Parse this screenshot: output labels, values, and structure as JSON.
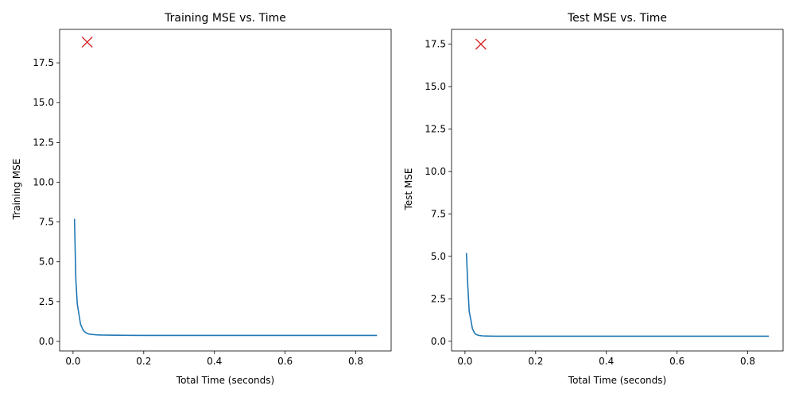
{
  "chart_data": [
    {
      "type": "line",
      "title": "Training MSE vs. Time",
      "xlabel": "Total Time (seconds)",
      "ylabel": "Training MSE",
      "xlim": [
        -0.038,
        0.9
      ],
      "ylim": [
        -0.6,
        19.6
      ],
      "xticks": [
        0.0,
        0.2,
        0.4,
        0.6,
        0.8
      ],
      "xtick_labels": [
        "0.0",
        "0.2",
        "0.4",
        "0.6",
        "0.8"
      ],
      "yticks": [
        0.0,
        2.5,
        5.0,
        7.5,
        10.0,
        12.5,
        15.0,
        17.5
      ],
      "ytick_labels": [
        "0.0",
        "2.5",
        "5.0",
        "7.5",
        "10.0",
        "12.5",
        "15.0",
        "17.5"
      ],
      "grid": false,
      "series": [
        {
          "color": "#1f77b4",
          "x": [
            0.004,
            0.008,
            0.012,
            0.017,
            0.021,
            0.026,
            0.03,
            0.035,
            0.04,
            0.045,
            0.05,
            0.06,
            0.07,
            0.085,
            0.1,
            0.12,
            0.15,
            0.2,
            0.3,
            0.4,
            0.5,
            0.6,
            0.7,
            0.8,
            0.86
          ],
          "y": [
            7.7,
            3.9,
            2.35,
            1.65,
            1.1,
            0.82,
            0.66,
            0.56,
            0.5,
            0.46,
            0.44,
            0.42,
            0.41,
            0.4,
            0.395,
            0.39,
            0.385,
            0.38,
            0.38,
            0.38,
            0.38,
            0.38,
            0.38,
            0.38,
            0.38
          ]
        }
      ],
      "marker": {
        "x": 0.04,
        "y": 18.8,
        "symbol": "x",
        "color": "#d62728"
      }
    },
    {
      "type": "line",
      "title": "Test MSE vs. Time",
      "xlabel": "Total Time (seconds)",
      "ylabel": "Test MSE",
      "xlim": [
        -0.038,
        0.9
      ],
      "ylim": [
        -0.57,
        18.37
      ],
      "xticks": [
        0.0,
        0.2,
        0.4,
        0.6,
        0.8
      ],
      "xtick_labels": [
        "0.0",
        "0.2",
        "0.4",
        "0.6",
        "0.8"
      ],
      "yticks": [
        0.0,
        2.5,
        5.0,
        7.5,
        10.0,
        12.5,
        15.0,
        17.5
      ],
      "ytick_labels": [
        "0.0",
        "2.5",
        "5.0",
        "7.5",
        "10.0",
        "12.5",
        "15.0",
        "17.5"
      ],
      "grid": false,
      "series": [
        {
          "color": "#1f77b4",
          "x": [
            0.004,
            0.008,
            0.012,
            0.017,
            0.021,
            0.026,
            0.03,
            0.035,
            0.04,
            0.045,
            0.05,
            0.06,
            0.07,
            0.085,
            0.1,
            0.12,
            0.15,
            0.2,
            0.3,
            0.4,
            0.5,
            0.6,
            0.7,
            0.8,
            0.86
          ],
          "y": [
            5.2,
            3.3,
            1.75,
            1.2,
            0.75,
            0.52,
            0.42,
            0.37,
            0.34,
            0.33,
            0.32,
            0.31,
            0.305,
            0.3,
            0.3,
            0.3,
            0.3,
            0.3,
            0.3,
            0.3,
            0.3,
            0.3,
            0.3,
            0.3,
            0.3
          ]
        }
      ],
      "marker": {
        "x": 0.045,
        "y": 17.5,
        "symbol": "x",
        "color": "#d62728"
      }
    }
  ]
}
